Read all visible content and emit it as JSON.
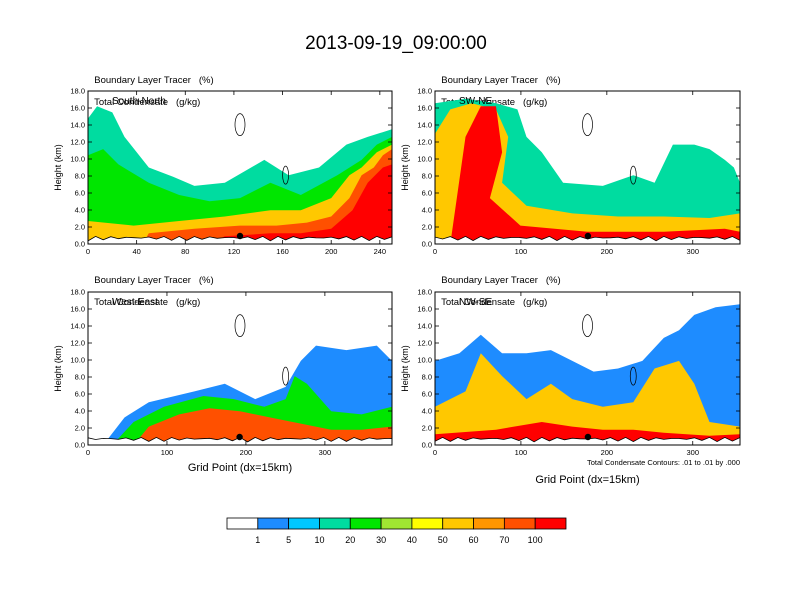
{
  "title": "2013-09-19_09:00:00",
  "panel_titles": {
    "tracer": "Boundary Layer Tracer",
    "tracer_units": "(%)",
    "condensate": "Total Condensate",
    "condensate_units": "(g/kg)"
  },
  "contour_note": "Total Condensate Contours: .01 to .01 by .000",
  "x_axis_title": "Grid Point (dx=15km)",
  "colorbar": {
    "levels": [
      "1",
      "5",
      "10",
      "20",
      "30",
      "40",
      "50",
      "60",
      "70",
      "100"
    ],
    "colors": [
      "#ffffff",
      "#1e8cff",
      "#00c8ff",
      "#00dca0",
      "#00e600",
      "#a0e632",
      "#ffff00",
      "#ffc800",
      "#ff9600",
      "#ff5000",
      "#ff0000"
    ]
  },
  "chart_data": [
    {
      "type": "heatmap",
      "label": "South-North",
      "ylabel": "Height (km)",
      "xlabel": "",
      "xlim": [
        0,
        250
      ],
      "ylim": [
        0,
        18
      ],
      "xticks": [
        "0",
        "40",
        "80",
        "120",
        "160",
        "200",
        "240"
      ],
      "yticks": [
        "0.0",
        "2.0",
        "4.0",
        "6.0",
        "8.0",
        "10.0",
        "12.0",
        "14.0",
        "16.0",
        "18.0"
      ],
      "marker_x": 125
    },
    {
      "type": "heatmap",
      "label": "SW-NE",
      "ylabel": "Height (km)",
      "xlabel": "",
      "xlim": [
        0,
        355
      ],
      "ylim": [
        0,
        18
      ],
      "xticks": [
        "0",
        "100",
        "200",
        "300"
      ],
      "yticks": [
        "0.0",
        "2.0",
        "4.0",
        "6.0",
        "8.0",
        "10.0",
        "12.0",
        "14.0",
        "16.0",
        "18.0"
      ],
      "marker_x": 178
    },
    {
      "type": "heatmap",
      "label": "West-East",
      "ylabel": "Height (km)",
      "xlabel": "Grid Point (dx=15km)",
      "xlim": [
        0,
        385
      ],
      "ylim": [
        0,
        18
      ],
      "xticks": [
        "0",
        "100",
        "200",
        "300"
      ],
      "yticks": [
        "0.0",
        "2.0",
        "4.0",
        "6.0",
        "8.0",
        "10.0",
        "12.0",
        "14.0",
        "16.0",
        "18.0"
      ],
      "marker_x": 192
    },
    {
      "type": "heatmap",
      "label": "NW-SE",
      "ylabel": "Height (km)",
      "xlabel": "Grid Point (dx=15km)",
      "xlim": [
        0,
        355
      ],
      "ylim": [
        0,
        18
      ],
      "xticks": [
        "0",
        "100",
        "200",
        "300"
      ],
      "yticks": [
        "0.0",
        "2.0",
        "4.0",
        "6.0",
        "8.0",
        "10.0",
        "12.0",
        "14.0",
        "16.0",
        "18.0"
      ],
      "marker_x": 178
    }
  ]
}
